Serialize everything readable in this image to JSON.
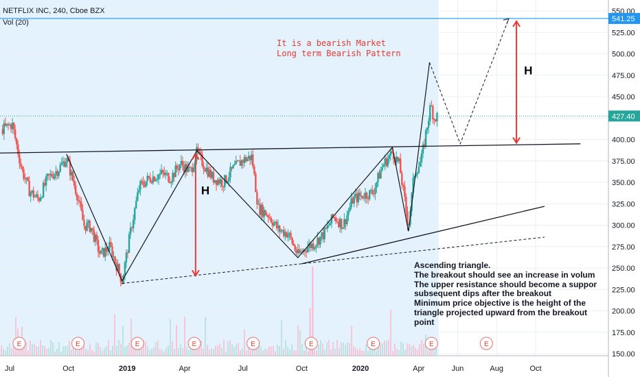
{
  "header": {
    "symbol_line": "NETFLIX INC, 240, Cboe BZX",
    "volume_label": "Vol (20)"
  },
  "colors": {
    "highlight": "#e3f2fd",
    "up": "#26a69a",
    "down": "#ef5350",
    "accent_blue": "#2196f3",
    "arrow_red": "#e53935",
    "annotation_red": "#e53935",
    "line_black": "#131722"
  },
  "chart_data": {
    "type": "candlestick",
    "y_axis_ticks": [
      150,
      175,
      200,
      225,
      250,
      275,
      300,
      325,
      350,
      375,
      400,
      425,
      450,
      475,
      500,
      525,
      550
    ],
    "y_axis_labels": [
      "150.00",
      "175.00",
      "200.00",
      "225.00",
      "250.00",
      "275.00",
      "300.00",
      "325.00",
      "350.00",
      "375.00",
      "400.00",
      "425.00",
      "450.00",
      "475.00",
      "500.00",
      "525.00",
      "550.00"
    ],
    "ylim": [
      147,
      557
    ],
    "x_ticks": [
      "Jul",
      "Oct",
      "2019",
      "Apr",
      "Jul",
      "Oct",
      "2020",
      "Apr",
      "Jun",
      "Aug",
      "Oct"
    ],
    "price_tags": [
      {
        "value": 541.25,
        "label": "541.25",
        "color": "#2196f3"
      },
      {
        "value": 427.4,
        "label": "427.40",
        "color": "#26a69a"
      }
    ],
    "earnings_markers": [
      "E",
      "E",
      "E",
      "E",
      "E",
      "E",
      "E",
      "E",
      "E"
    ],
    "annotations": {
      "bearish_title": "It is a bearish Market",
      "bearish_subtitle": "Long term Bearish Pattern",
      "height_label": "H",
      "height_label_2": "H",
      "triangle_notes": [
        "Ascending triangle.",
        "The breakout should see an increase in volum",
        "The upper resistance should become a suppor",
        "subsequent dips after the breakout",
        "Minimum price objective is the height of the",
        "triangle projected upward from the breakout",
        "point"
      ]
    },
    "price_path": [
      [
        "2018-06-20",
        412
      ],
      [
        "2018-07-05",
        418
      ],
      [
        "2018-07-20",
        365
      ],
      [
        "2018-08-01",
        340
      ],
      [
        "2018-08-15",
        330
      ],
      [
        "2018-08-30",
        355
      ],
      [
        "2018-09-15",
        365
      ],
      [
        "2018-09-28",
        378
      ],
      [
        "2018-10-05",
        360
      ],
      [
        "2018-10-15",
        335
      ],
      [
        "2018-10-25",
        300
      ],
      [
        "2018-11-05",
        298
      ],
      [
        "2018-11-20",
        265
      ],
      [
        "2018-12-05",
        275
      ],
      [
        "2018-12-24",
        235
      ],
      [
        "2019-01-08",
        300
      ],
      [
        "2019-01-20",
        345
      ],
      [
        "2019-02-05",
        355
      ],
      [
        "2019-02-25",
        360
      ],
      [
        "2019-03-10",
        355
      ],
      [
        "2019-03-25",
        372
      ],
      [
        "2019-04-10",
        362
      ],
      [
        "2019-04-20",
        385
      ],
      [
        "2019-05-01",
        370
      ],
      [
        "2019-05-15",
        355
      ],
      [
        "2019-06-01",
        350
      ],
      [
        "2019-06-15",
        365
      ],
      [
        "2019-07-01",
        376
      ],
      [
        "2019-07-15",
        380
      ],
      [
        "2019-07-25",
        320
      ],
      [
        "2019-08-10",
        312
      ],
      [
        "2019-08-25",
        295
      ],
      [
        "2019-09-10",
        290
      ],
      [
        "2019-09-25",
        265
      ],
      [
        "2019-10-10",
        275
      ],
      [
        "2019-10-20",
        278
      ],
      [
        "2019-11-05",
        290
      ],
      [
        "2019-11-20",
        310
      ],
      [
        "2019-12-05",
        300
      ],
      [
        "2019-12-20",
        330
      ],
      [
        "2020-01-05",
        335
      ],
      [
        "2020-01-20",
        338
      ],
      [
        "2020-02-05",
        370
      ],
      [
        "2020-02-20",
        385
      ],
      [
        "2020-03-02",
        370
      ],
      [
        "2020-03-16",
        298
      ],
      [
        "2020-03-25",
        360
      ],
      [
        "2020-04-05",
        375
      ],
      [
        "2020-04-14",
        415
      ],
      [
        "2020-04-20",
        440
      ],
      [
        "2020-04-25",
        425
      ],
      [
        "2020-04-30",
        427
      ]
    ],
    "resistance_line": [
      [
        "2018-06-01",
        384
      ],
      [
        "2020-12-10",
        395
      ]
    ],
    "support_line": [
      [
        "2019-10-01",
        255
      ],
      [
        "2020-10-15",
        322
      ]
    ],
    "dashed_support": [
      [
        "2018-12-24",
        232
      ],
      [
        "2020-10-15",
        286
      ]
    ],
    "pattern_zigzag": [
      [
        "2018-09-28",
        383
      ],
      [
        "2018-12-24",
        235
      ],
      [
        "2019-04-20",
        387
      ],
      [
        "2019-09-25",
        262
      ],
      [
        "2020-02-20",
        391
      ],
      [
        "2020-03-16",
        293
      ],
      [
        "2020-04-18",
        490
      ]
    ],
    "projection": [
      [
        "2020-04-18",
        490
      ],
      [
        "2020-06-05",
        395
      ],
      [
        "2020-08-20",
        541
      ]
    ],
    "height_arrow_1": {
      "x": "2019-04-18",
      "from": 241,
      "to": 383
    },
    "height_arrow_2": {
      "x": "2020-09-01",
      "from": 396,
      "to": 538
    },
    "resistance_level": 541.25,
    "last_price": 427.4,
    "grid": true,
    "legend": "none"
  }
}
